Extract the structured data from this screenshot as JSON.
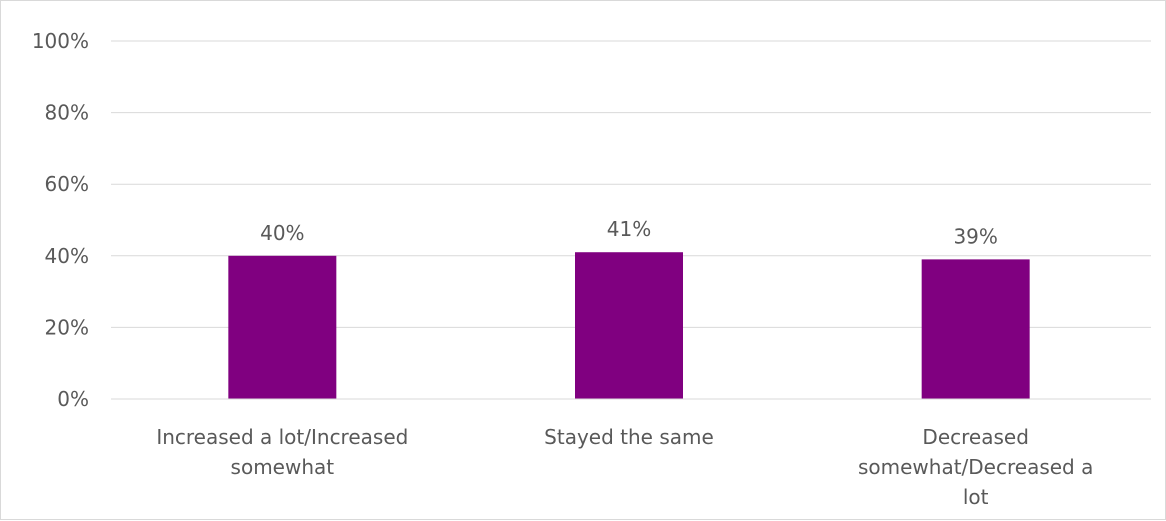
{
  "chart_data": {
    "type": "bar",
    "categories": [
      [
        "Increased a lot/Increased",
        "somewhat"
      ],
      [
        "Stayed the same"
      ],
      [
        "Decreased",
        "somewhat/Decreased a",
        "lot"
      ]
    ],
    "values": [
      40,
      41,
      39
    ],
    "data_labels": [
      "40%",
      "41%",
      "39%"
    ],
    "ylim": [
      0,
      100
    ],
    "yticks": [
      0,
      20,
      40,
      60,
      80,
      100
    ],
    "ytick_labels": [
      "0%",
      "20%",
      "40%",
      "60%",
      "80%",
      "100%"
    ],
    "bar_color": "#800080",
    "grid": true,
    "legend": "none"
  }
}
